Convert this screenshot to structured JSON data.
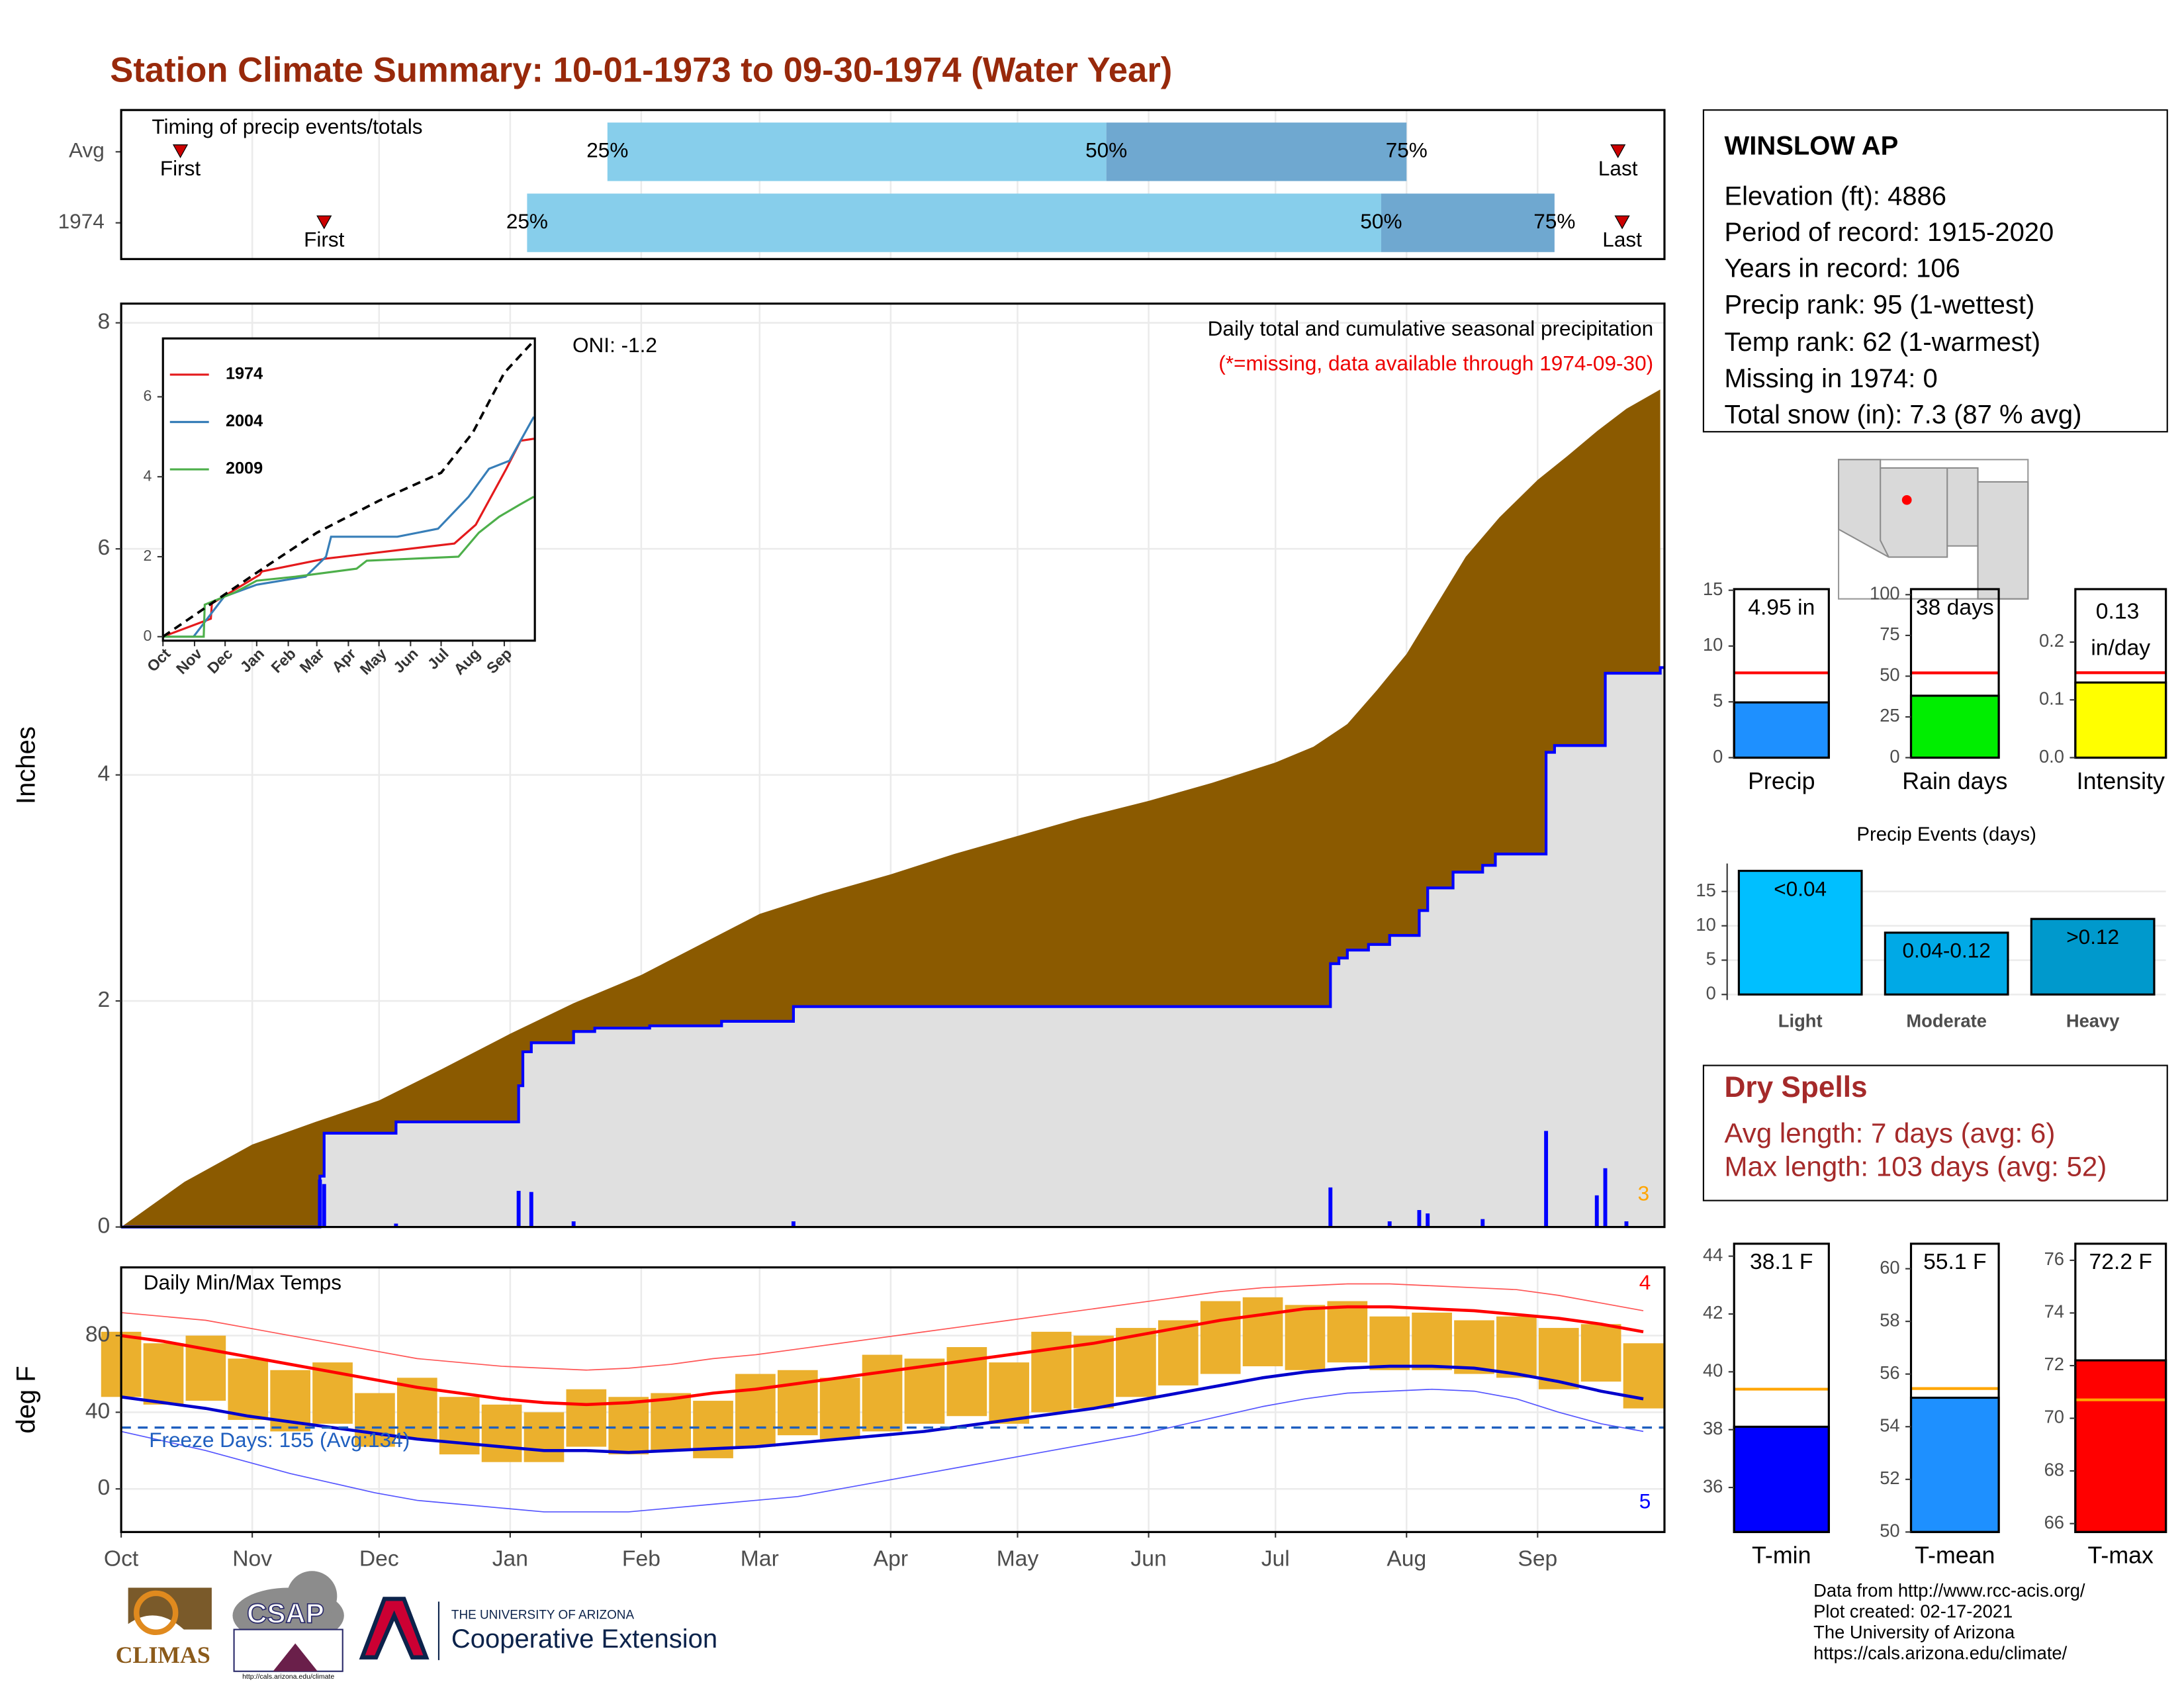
{
  "header": {
    "title": "Station Climate Summary: 10-01-1973 to 09-30-1974 (Water Year)"
  },
  "station": {
    "name": "WINSLOW AP",
    "lines": [
      "Elevation (ft): 4886",
      "Period of record: 1915-2020",
      "Years in record: 106",
      "Precip rank: 95 (1-wettest)",
      "Temp rank: 62 (1-warmest)",
      "Missing in 1974: 0",
      "Total snow (in): 7.3 (87 % avg)"
    ]
  },
  "dry_spells": {
    "title": "Dry Spells",
    "lines": [
      "Avg length: 7 days (avg: 6)",
      "Max length: 103 days (avg: 52)"
    ]
  },
  "footer": [
    "Data from http://www.rcc-acis.org/",
    "Plot created: 02-17-2021",
    "The University of Arizona",
    "https://cals.arizona.edu/climate/"
  ],
  "logos": {
    "climas": "CLIMAS",
    "csap": "CSAP",
    "csap_url": "http://cals.arizona.edu/climate",
    "university": "THE UNIVERSITY OF ARIZONA",
    "extension": "Cooperative Extension"
  },
  "chart_data": [
    {
      "type": "timing",
      "title": "Timing of precip events/totals",
      "xlim": [
        0,
        365
      ],
      "rows": [
        {
          "name": "Avg",
          "first": 14,
          "p25": 115,
          "p50": 233,
          "p75": 304,
          "last": 354
        },
        {
          "name": "1974",
          "first": 48,
          "p25": 96,
          "p50": 298,
          "p75": 339,
          "last": 355
        }
      ],
      "labels": {
        "first": "First",
        "p25": "25%",
        "p50": "50%",
        "p75": "75%",
        "last": "Last"
      },
      "colors": {
        "early": "#87ceeb",
        "late": "#6fa8d0",
        "marker": "#cc0000"
      }
    },
    {
      "type": "area",
      "title": "Daily total and cumulative seasonal precipitation",
      "subtitle": "(*=missing, data available through 1974-09-30)",
      "ylabel": "Inches",
      "annotations": [
        {
          "text": "ONI: -1.2",
          "color": "#000000"
        },
        {
          "text": "3",
          "color": "#ffa500"
        }
      ],
      "xlim": [
        0,
        365
      ],
      "ylim": [
        0,
        8.17
      ],
      "yticks": [
        0,
        2,
        4,
        6,
        8
      ],
      "grid": true,
      "series": [
        {
          "style": "area",
          "color": "#8b5a00",
          "x": [
            0,
            15,
            31,
            46,
            61,
            76,
            92,
            107,
            123,
            137,
            151,
            166,
            182,
            197,
            212,
            227,
            243,
            258,
            273,
            282,
            290,
            297,
            304,
            311,
            318,
            326,
            335,
            342,
            349,
            356,
            364
          ],
          "values": [
            0,
            0.4,
            0.73,
            0.93,
            1.12,
            1.4,
            1.71,
            1.98,
            2.23,
            2.5,
            2.77,
            2.95,
            3.12,
            3.3,
            3.46,
            3.62,
            3.77,
            3.93,
            4.11,
            4.25,
            4.45,
            4.75,
            5.07,
            5.5,
            5.93,
            6.28,
            6.61,
            6.82,
            7.04,
            7.24,
            7.41
          ]
        },
        {
          "style": "step-area",
          "color": "#0000ff",
          "fill": "#e0e0e0",
          "x": [
            0,
            47,
            48,
            65,
            94,
            95,
            97,
            107,
            112,
            125,
            142,
            159,
            286,
            288,
            290,
            295,
            300,
            307,
            309,
            315,
            322,
            325,
            337,
            339,
            351,
            364
          ],
          "values": [
            0,
            0.45,
            0.83,
            0.93,
            1.25,
            1.55,
            1.63,
            1.73,
            1.76,
            1.78,
            1.82,
            1.95,
            2.33,
            2.38,
            2.45,
            2.5,
            2.58,
            2.8,
            3.0,
            3.14,
            3.2,
            3.3,
            4.2,
            4.26,
            4.9,
            4.95
          ]
        },
        {
          "style": "bar",
          "color": "#0000ff",
          "x": [
            47,
            48,
            65,
            94,
            97,
            107,
            159,
            286,
            300,
            307,
            309,
            322,
            337,
            349,
            351,
            356
          ],
          "values": [
            0.42,
            0.38,
            0.03,
            0.32,
            0.31,
            0.05,
            0.05,
            0.35,
            0.05,
            0.15,
            0.12,
            0.07,
            0.85,
            0.28,
            0.52,
            0.05
          ]
        }
      ]
    },
    {
      "type": "line",
      "xlim": [
        0,
        365
      ],
      "ylim": [
        -0.1,
        7.46
      ],
      "yticks": [
        0,
        2,
        4,
        6
      ],
      "xticks": [
        {
          "value": 0,
          "label": "Oct"
        },
        {
          "value": 31,
          "label": "Nov"
        },
        {
          "value": 61,
          "label": "Dec"
        },
        {
          "value": 92,
          "label": "Jan"
        },
        {
          "value": 123,
          "label": "Feb"
        },
        {
          "value": 151,
          "label": "Mar"
        },
        {
          "value": 182,
          "label": "Apr"
        },
        {
          "value": 212,
          "label": "May"
        },
        {
          "value": 243,
          "label": "Jun"
        },
        {
          "value": 273,
          "label": "Jul"
        },
        {
          "value": 304,
          "label": "Aug"
        },
        {
          "value": 335,
          "label": "Sep"
        }
      ],
      "series": [
        {
          "name": "1974",
          "color": "#e41a1c",
          "x": [
            0,
            47,
            48,
            95,
            97,
            159,
            286,
            307,
            337,
            351,
            364
          ],
          "values": [
            0,
            0.45,
            0.83,
            1.55,
            1.63,
            1.95,
            2.33,
            2.8,
            4.2,
            4.9,
            4.95
          ]
        },
        {
          "name": "2004",
          "color": "#377eb8",
          "x": [
            0,
            30,
            60,
            92,
            140,
            160,
            165,
            230,
            270,
            300,
            320,
            340,
            364
          ],
          "values": [
            0,
            0,
            1,
            1.3,
            1.5,
            2,
            2.5,
            2.5,
            2.7,
            3.5,
            4.2,
            4.4,
            5.5
          ]
        },
        {
          "name": "2009",
          "color": "#4daf4a",
          "x": [
            0,
            40,
            41,
            70,
            92,
            130,
            190,
            200,
            290,
            310,
            330,
            350,
            364
          ],
          "values": [
            0,
            0,
            0.8,
            1.1,
            1.4,
            1.5,
            1.7,
            1.9,
            2.0,
            2.6,
            3.0,
            3.3,
            3.5
          ]
        },
        {
          "color": "#000000",
          "dash": true,
          "x": [
            0,
            92,
            151,
            212,
            273,
            304,
            335,
            364
          ],
          "values": [
            0,
            1.6,
            2.6,
            3.4,
            4.1,
            5.1,
            6.6,
            7.4
          ]
        }
      ]
    },
    {
      "type": "temperature",
      "title": "Daily Min/Max Temps",
      "ylabel": "deg F",
      "freeze_label": "Freeze Days: 155 (Avg:134)",
      "freeze_line": 32,
      "freeze_color": "#1f5fbf",
      "annotations": [
        {
          "text": "4",
          "color": "#ff0000"
        },
        {
          "text": "5",
          "color": "#0000ff"
        }
      ],
      "xlim": [
        0,
        365
      ],
      "ylim": [
        -22.5,
        115.6
      ],
      "yticks": [
        0,
        40,
        80
      ],
      "grid": true,
      "xticks": [
        {
          "value": 0,
          "label": "Oct"
        },
        {
          "value": 31,
          "label": "Nov"
        },
        {
          "value": 61,
          "label": "Dec"
        },
        {
          "value": 92,
          "label": "Jan"
        },
        {
          "value": 123,
          "label": "Feb"
        },
        {
          "value": 151,
          "label": "Mar"
        },
        {
          "value": 182,
          "label": "Apr"
        },
        {
          "value": 212,
          "label": "May"
        },
        {
          "value": 243,
          "label": "Jun"
        },
        {
          "value": 273,
          "label": "Jul"
        },
        {
          "value": 304,
          "label": "Aug"
        },
        {
          "value": 335,
          "label": "Sep"
        }
      ],
      "x": [
        0,
        10,
        20,
        30,
        40,
        50,
        60,
        70,
        80,
        90,
        100,
        110,
        120,
        130,
        140,
        150,
        160,
        170,
        180,
        190,
        200,
        210,
        220,
        230,
        240,
        250,
        260,
        270,
        280,
        290,
        300,
        310,
        320,
        330,
        340,
        350,
        360
      ],
      "ranges": {
        "color": "#ebb02d",
        "low": [
          48,
          44,
          46,
          36,
          30,
          34,
          22,
          26,
          18,
          14,
          14,
          22,
          18,
          20,
          16,
          22,
          28,
          26,
          30,
          34,
          38,
          34,
          40,
          42,
          48,
          54,
          60,
          64,
          62,
          66,
          62,
          62,
          60,
          58,
          52,
          56,
          42
        ],
        "high": [
          82,
          76,
          80,
          68,
          62,
          66,
          50,
          58,
          48,
          44,
          40,
          52,
          48,
          50,
          46,
          60,
          62,
          58,
          70,
          68,
          74,
          66,
          82,
          80,
          84,
          88,
          98,
          100,
          96,
          98,
          90,
          92,
          88,
          90,
          84,
          86,
          76
        ]
      },
      "series": [
        {
          "color": "#ff5555",
          "line_width": 0.8,
          "values": [
            92,
            90,
            88,
            84,
            80,
            76,
            72,
            68,
            66,
            64,
            63,
            62,
            63,
            65,
            68,
            70,
            73,
            76,
            79,
            82,
            85,
            88,
            91,
            94,
            97,
            100,
            103,
            105,
            106,
            107,
            107,
            106,
            105,
            104,
            101,
            97,
            93
          ]
        },
        {
          "color": "#ff0000",
          "line_width": 2.2,
          "values": [
            80,
            77,
            73,
            69,
            65,
            61,
            57,
            53,
            50,
            47,
            45,
            44,
            45,
            47,
            50,
            52,
            55,
            58,
            61,
            64,
            67,
            70,
            73,
            76,
            80,
            84,
            88,
            91,
            94,
            95,
            95,
            94,
            93,
            91,
            89,
            86,
            82
          ]
        },
        {
          "color": "#0000cc",
          "line_width": 2.2,
          "values": [
            48,
            45,
            42,
            38,
            35,
            32,
            29,
            26,
            24,
            22,
            20,
            20,
            19,
            20,
            21,
            22,
            24,
            26,
            28,
            30,
            33,
            36,
            39,
            42,
            46,
            50,
            54,
            58,
            61,
            63,
            64,
            64,
            63,
            60,
            56,
            51,
            47
          ]
        },
        {
          "color": "#5555ff",
          "line_width": 0.8,
          "values": [
            30,
            25,
            20,
            14,
            8,
            3,
            -2,
            -6,
            -8,
            -10,
            -12,
            -12,
            -12,
            -10,
            -8,
            -6,
            -4,
            0,
            4,
            8,
            12,
            16,
            20,
            24,
            28,
            33,
            38,
            43,
            47,
            50,
            51,
            52,
            51,
            47,
            40,
            34,
            30
          ]
        }
      ]
    },
    {
      "type": "bar",
      "categories": [
        "Precip"
      ],
      "values": [
        4.95
      ],
      "value_labels": [
        "4.95 in"
      ],
      "color": "#1e90ff",
      "reference": 7.6,
      "reference_color": "#ff0000",
      "ylim": [
        0,
        15.1
      ],
      "yticks": [
        0,
        5,
        10,
        15
      ]
    },
    {
      "type": "bar",
      "categories": [
        "Rain days"
      ],
      "values": [
        38
      ],
      "value_labels": [
        "38 days"
      ],
      "color": "#00ee00",
      "reference": 52,
      "reference_color": "#ff0000",
      "ylim": [
        0,
        103.4
      ],
      "yticks": [
        0,
        25,
        50,
        75,
        100
      ]
    },
    {
      "type": "bar",
      "categories": [
        "Intensity"
      ],
      "values": [
        0.13
      ],
      "value_labels": [
        "0.13 in/day"
      ],
      "color": "#ffff00",
      "reference": 0.147,
      "reference_color": "#ff0000",
      "ylim": [
        0,
        0.2916
      ],
      "yticks": [
        {
          "value": 0,
          "label": "0.0"
        },
        {
          "value": 0.1,
          "label": "0.1"
        },
        {
          "value": 0.2,
          "label": "0.2"
        }
      ]
    },
    {
      "type": "bar",
      "title": "Precip Events (days)",
      "categories": [
        "Light",
        "Moderate",
        "Heavy"
      ],
      "values": [
        18,
        9,
        11
      ],
      "bin_labels": [
        "<0.04",
        "0.04-0.12",
        ">0.12"
      ],
      "colors": [
        "#00bfff",
        "#00a9e6",
        "#0099cc"
      ],
      "ylim": [
        -0.8,
        19.07
      ],
      "yticks": [
        0,
        5,
        10,
        15
      ],
      "grid": true
    },
    {
      "type": "bar",
      "categories": [
        "T-min"
      ],
      "values": [
        38.1
      ],
      "value_labels": [
        "38.1 F"
      ],
      "color": "#0000ff",
      "reference": 39.4,
      "reference_color": "#ffa500",
      "ylim": [
        34.46,
        44.43
      ],
      "yticks": [
        36,
        38,
        40,
        42,
        44
      ]
    },
    {
      "type": "bar",
      "categories": [
        "T-mean"
      ],
      "values": [
        55.1
      ],
      "value_labels": [
        "55.1 F"
      ],
      "color": "#1e90ff",
      "reference": 55.45,
      "reference_color": "#ffa500",
      "ylim": [
        50,
        60.95
      ],
      "yticks": [
        50,
        52,
        54,
        56,
        58,
        60
      ]
    },
    {
      "type": "bar",
      "categories": [
        "T-max"
      ],
      "values": [
        72.2
      ],
      "value_labels": [
        "72.2 F"
      ],
      "color": "#ff0000",
      "reference": 70.7,
      "reference_color": "#ffa500",
      "ylim": [
        65.68,
        76.63
      ],
      "yticks": [
        66,
        68,
        70,
        72,
        74,
        76
      ]
    }
  ]
}
